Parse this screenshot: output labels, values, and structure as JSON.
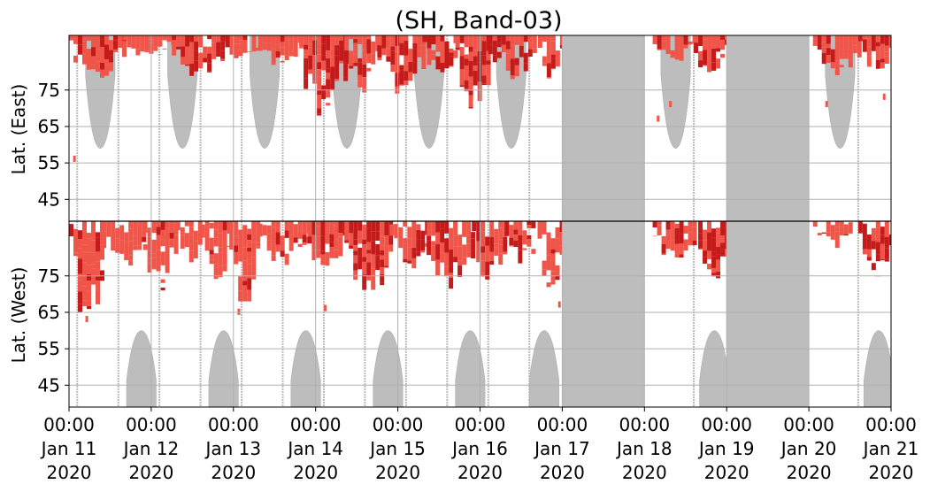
{
  "chart_data": {
    "type": "heatmap",
    "title": "(SH, Band-03)",
    "xlabel": "",
    "x_ticks": [
      {
        "time": "00:00",
        "date": "Jan 11",
        "year": "2020",
        "day": 0
      },
      {
        "time": "00:00",
        "date": "Jan 12",
        "year": "2020",
        "day": 1
      },
      {
        "time": "00:00",
        "date": "Jan 13",
        "year": "2020",
        "day": 2
      },
      {
        "time": "00:00",
        "date": "Jan 14",
        "year": "2020",
        "day": 3
      },
      {
        "time": "00:00",
        "date": "Jan 15",
        "year": "2020",
        "day": 4
      },
      {
        "time": "00:00",
        "date": "Jan 16",
        "year": "2020",
        "day": 5
      },
      {
        "time": "00:00",
        "date": "Jan 17",
        "year": "2020",
        "day": 6
      },
      {
        "time": "00:00",
        "date": "Jan 18",
        "year": "2020",
        "day": 7
      },
      {
        "time": "00:00",
        "date": "Jan 19",
        "year": "2020",
        "day": 8
      },
      {
        "time": "00:00",
        "date": "Jan 20",
        "year": "2020",
        "day": 9
      },
      {
        "time": "00:00",
        "date": "Jan 21",
        "year": "2020",
        "day": 10
      }
    ],
    "x_range_days": [
      0,
      10
    ],
    "y_upper_label": "Lat. (East)",
    "y_lower_label": "Lat. (West)",
    "y_upper_ticks": [
      45,
      55,
      65,
      75
    ],
    "y_lower_ticks": [
      75,
      65,
      55,
      45
    ],
    "y_upper_range": [
      39,
      90
    ],
    "y_lower_range": [
      90,
      39
    ],
    "grid": true,
    "colors": {
      "no_data_gray": "#bdbdbd",
      "activity_light": "#f0554a",
      "activity_dark": "#c41a1a",
      "grid": "#b0b0b0",
      "center_line": "#000000"
    },
    "gray_full_columns_days": [
      [
        6.0,
        7.0
      ],
      [
        8.0,
        9.0
      ]
    ],
    "gray_lobes_east": [
      {
        "center_day": 0.38,
        "half_width_days": 0.18,
        "lat_min": 59
      },
      {
        "center_day": 1.38,
        "half_width_days": 0.18,
        "lat_min": 59
      },
      {
        "center_day": 2.38,
        "half_width_days": 0.18,
        "lat_min": 59
      },
      {
        "center_day": 3.38,
        "half_width_days": 0.18,
        "lat_min": 59
      },
      {
        "center_day": 4.38,
        "half_width_days": 0.18,
        "lat_min": 59
      },
      {
        "center_day": 5.38,
        "half_width_days": 0.18,
        "lat_min": 59
      },
      {
        "center_day": 7.38,
        "half_width_days": 0.18,
        "lat_min": 59
      },
      {
        "center_day": 9.38,
        "half_width_days": 0.18,
        "lat_min": 59
      }
    ],
    "gray_lobes_west": [
      {
        "center_day": 0.88,
        "half_width_days": 0.18,
        "lat_min": 60
      },
      {
        "center_day": 1.88,
        "half_width_days": 0.18,
        "lat_min": 60
      },
      {
        "center_day": 2.88,
        "half_width_days": 0.18,
        "lat_min": 60
      },
      {
        "center_day": 3.88,
        "half_width_days": 0.18,
        "lat_min": 60
      },
      {
        "center_day": 4.88,
        "half_width_days": 0.18,
        "lat_min": 60
      },
      {
        "center_day": 5.78,
        "half_width_days": 0.18,
        "lat_min": 60
      },
      {
        "center_day": 7.85,
        "half_width_days": 0.18,
        "lat_min": 60
      },
      {
        "center_day": 9.85,
        "half_width_days": 0.18,
        "lat_min": 60
      }
    ],
    "gray_thin_lines_days": [
      0.1,
      0.6,
      1.1,
      1.6,
      2.1,
      2.6,
      3.1,
      3.6,
      4.1,
      4.6,
      5.1,
      5.6,
      7.6,
      8.6,
      9.6
    ],
    "activity_east": [
      {
        "d0": 0.0,
        "d1": 0.65,
        "lat": 80,
        "dark": 0.15
      },
      {
        "d0": 0.65,
        "d1": 1.25,
        "lat": 85,
        "dark": 0.05
      },
      {
        "d0": 1.25,
        "d1": 1.9,
        "lat": 80,
        "dark": 0.25
      },
      {
        "d0": 1.9,
        "d1": 2.3,
        "lat": 84,
        "dark": 0.1
      },
      {
        "d0": 2.3,
        "d1": 2.8,
        "lat": 82,
        "dark": 0.15
      },
      {
        "d0": 2.8,
        "d1": 3.35,
        "lat": 70,
        "dark": 0.55
      },
      {
        "d0": 3.35,
        "d1": 3.75,
        "lat": 76,
        "dark": 0.3
      },
      {
        "d0": 3.75,
        "d1": 4.3,
        "lat": 76,
        "dark": 0.5
      },
      {
        "d0": 4.3,
        "d1": 4.7,
        "lat": 80,
        "dark": 0.2
      },
      {
        "d0": 4.7,
        "d1": 5.1,
        "lat": 71,
        "dark": 0.45
      },
      {
        "d0": 5.1,
        "d1": 5.65,
        "lat": 80,
        "dark": 0.45
      },
      {
        "d0": 5.65,
        "d1": 6.0,
        "lat": 80,
        "dark": 0.25
      },
      {
        "d0": 7.1,
        "d1": 7.6,
        "lat": 84,
        "dark": 0.15
      },
      {
        "d0": 7.6,
        "d1": 8.0,
        "lat": 80,
        "dark": 0.35
      },
      {
        "d0": 9.05,
        "d1": 9.6,
        "lat": 80,
        "dark": 0.2
      },
      {
        "d0": 9.6,
        "d1": 10.0,
        "lat": 82,
        "dark": 0.2
      }
    ],
    "activity_west": [
      {
        "d0": 0.0,
        "d1": 0.4,
        "lat": 66,
        "dark": 0.25
      },
      {
        "d0": 0.4,
        "d1": 0.9,
        "lat": 78,
        "dark": 0.1
      },
      {
        "d0": 0.9,
        "d1": 1.3,
        "lat": 73,
        "dark": 0.1
      },
      {
        "d0": 1.3,
        "d1": 1.6,
        "lat": 80,
        "dark": 0.05
      },
      {
        "d0": 1.6,
        "d1": 1.95,
        "lat": 76,
        "dark": 0.1
      },
      {
        "d0": 1.95,
        "d1": 2.3,
        "lat": 70,
        "dark": 0.2
      },
      {
        "d0": 2.3,
        "d1": 2.9,
        "lat": 80,
        "dark": 0.15
      },
      {
        "d0": 2.9,
        "d1": 3.35,
        "lat": 76,
        "dark": 0.35
      },
      {
        "d0": 3.35,
        "d1": 3.9,
        "lat": 72,
        "dark": 0.55
      },
      {
        "d0": 3.9,
        "d1": 4.35,
        "lat": 78,
        "dark": 0.3
      },
      {
        "d0": 4.35,
        "d1": 4.9,
        "lat": 73,
        "dark": 0.35
      },
      {
        "d0": 4.9,
        "d1": 5.3,
        "lat": 76,
        "dark": 0.35
      },
      {
        "d0": 5.3,
        "d1": 5.7,
        "lat": 80,
        "dark": 0.5
      },
      {
        "d0": 5.7,
        "d1": 6.0,
        "lat": 72,
        "dark": 0.3
      },
      {
        "d0": 7.1,
        "d1": 7.6,
        "lat": 80,
        "dark": 0.3
      },
      {
        "d0": 7.6,
        "d1": 8.0,
        "lat": 76,
        "dark": 0.65
      },
      {
        "d0": 9.05,
        "d1": 9.5,
        "lat": 84,
        "dark": 0.1
      },
      {
        "d0": 9.6,
        "d1": 10.0,
        "lat": 76,
        "dark": 0.55
      }
    ],
    "scatter_specks": [
      {
        "d": 0.05,
        "lat_east": 57
      },
      {
        "d": 7.15,
        "lat_east": 68
      },
      {
        "d": 7.3,
        "lat_east": 72
      },
      {
        "d": 9.2,
        "lat_east": 72
      },
      {
        "d": 9.9,
        "lat_east": 74
      },
      {
        "d": 2.05,
        "lat_west": 66
      },
      {
        "d": 3.1,
        "lat_west": 67
      },
      {
        "d": 0.2,
        "lat_west": 64
      },
      {
        "d": 5.95,
        "lat_west": 68
      }
    ]
  }
}
